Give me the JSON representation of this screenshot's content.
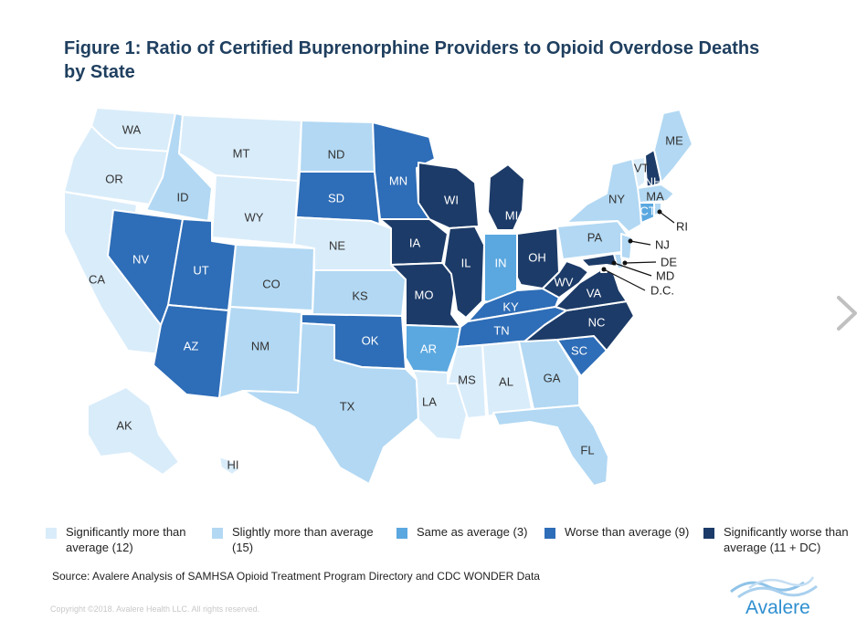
{
  "title": "Figure 1: Ratio of Certified Buprenorphine Providers to Opioid Overdose Deaths by State",
  "colors": {
    "sig_more": "#d9ecfa",
    "slight_more": "#b2d8f3",
    "same": "#5ba8e0",
    "worse": "#2e6db7",
    "sig_worse": "#1c3b68"
  },
  "legend": [
    {
      "category": "sig_more",
      "label": "Significantly more than average (12)"
    },
    {
      "category": "slight_more",
      "label": "Slightly more than average (15)"
    },
    {
      "category": "same",
      "label": "Same as average (3)"
    },
    {
      "category": "worse",
      "label": "Worse than average (9)"
    },
    {
      "category": "sig_worse",
      "label": "Significantly worse than average (11 + DC)"
    }
  ],
  "states": [
    {
      "abbr": "WA",
      "category": "sig_more"
    },
    {
      "abbr": "OR",
      "category": "sig_more"
    },
    {
      "abbr": "CA",
      "category": "sig_more"
    },
    {
      "abbr": "MT",
      "category": "sig_more"
    },
    {
      "abbr": "WY",
      "category": "sig_more"
    },
    {
      "abbr": "NE",
      "category": "sig_more"
    },
    {
      "abbr": "MS",
      "category": "sig_more"
    },
    {
      "abbr": "AL",
      "category": "sig_more"
    },
    {
      "abbr": "LA",
      "category": "sig_more"
    },
    {
      "abbr": "AK",
      "category": "sig_more"
    },
    {
      "abbr": "HI",
      "category": "sig_more"
    },
    {
      "abbr": "VT",
      "category": "sig_more"
    },
    {
      "abbr": "ID",
      "category": "slight_more"
    },
    {
      "abbr": "ND",
      "category": "slight_more"
    },
    {
      "abbr": "CO",
      "category": "slight_more"
    },
    {
      "abbr": "KS",
      "category": "slight_more"
    },
    {
      "abbr": "NM",
      "category": "slight_more"
    },
    {
      "abbr": "TX",
      "category": "slight_more"
    },
    {
      "abbr": "GA",
      "category": "slight_more"
    },
    {
      "abbr": "FL",
      "category": "slight_more"
    },
    {
      "abbr": "PA",
      "category": "slight_more"
    },
    {
      "abbr": "NY",
      "category": "slight_more"
    },
    {
      "abbr": "ME",
      "category": "slight_more"
    },
    {
      "abbr": "MA",
      "category": "slight_more"
    },
    {
      "abbr": "NJ",
      "category": "slight_more"
    },
    {
      "abbr": "DE",
      "category": "slight_more"
    },
    {
      "abbr": "RI",
      "category": "slight_more"
    },
    {
      "abbr": "IN",
      "category": "same"
    },
    {
      "abbr": "AR",
      "category": "same"
    },
    {
      "abbr": "CT",
      "category": "same"
    },
    {
      "abbr": "NV",
      "category": "worse"
    },
    {
      "abbr": "UT",
      "category": "worse"
    },
    {
      "abbr": "AZ",
      "category": "worse"
    },
    {
      "abbr": "SD",
      "category": "worse"
    },
    {
      "abbr": "MN",
      "category": "worse"
    },
    {
      "abbr": "OK",
      "category": "worse"
    },
    {
      "abbr": "KY",
      "category": "worse"
    },
    {
      "abbr": "TN",
      "category": "worse"
    },
    {
      "abbr": "SC",
      "category": "worse"
    },
    {
      "abbr": "WI",
      "category": "sig_worse"
    },
    {
      "abbr": "MI",
      "category": "sig_worse"
    },
    {
      "abbr": "IA",
      "category": "sig_worse"
    },
    {
      "abbr": "IL",
      "category": "sig_worse"
    },
    {
      "abbr": "MO",
      "category": "sig_worse"
    },
    {
      "abbr": "OH",
      "category": "sig_worse"
    },
    {
      "abbr": "WV",
      "category": "sig_worse"
    },
    {
      "abbr": "VA",
      "category": "sig_worse"
    },
    {
      "abbr": "NC",
      "category": "sig_worse"
    },
    {
      "abbr": "NH",
      "category": "sig_worse"
    },
    {
      "abbr": "MD",
      "category": "sig_worse"
    },
    {
      "abbr": "D.C.",
      "category": "sig_worse"
    }
  ],
  "source": "Source: Avalere Analysis of SAMHSA Opioid Treatment Program Directory and CDC WONDER Data",
  "copyright": "Copyright ©2018. Avalere Health LLC. All rights reserved.",
  "logo_text": "Avalere",
  "icons": {
    "next": "chevron-right-icon",
    "logo": "avalere-wave-logo-icon"
  }
}
